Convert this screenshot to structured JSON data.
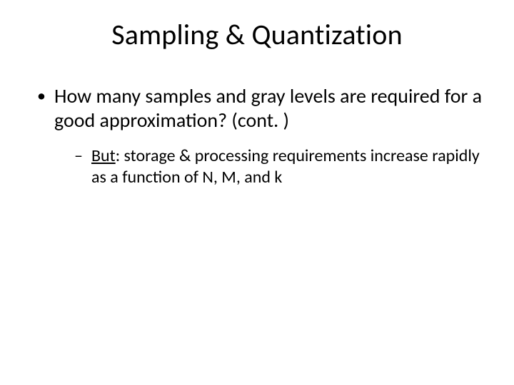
{
  "title": "Sampling & Quantization",
  "bullets": {
    "l1": {
      "text": "How many samples and gray levels are required for a good approximation? (cont. )"
    },
    "l2": {
      "lead": "But",
      "rest": ": storage & processing requirements increase rapidly as a function of N, M, and k"
    }
  },
  "style": {
    "bg": "#ffffff",
    "text_color": "#000000",
    "title_fontsize": 40,
    "l1_fontsize": 28,
    "l2_fontsize": 24,
    "font_family": "Calibri"
  }
}
